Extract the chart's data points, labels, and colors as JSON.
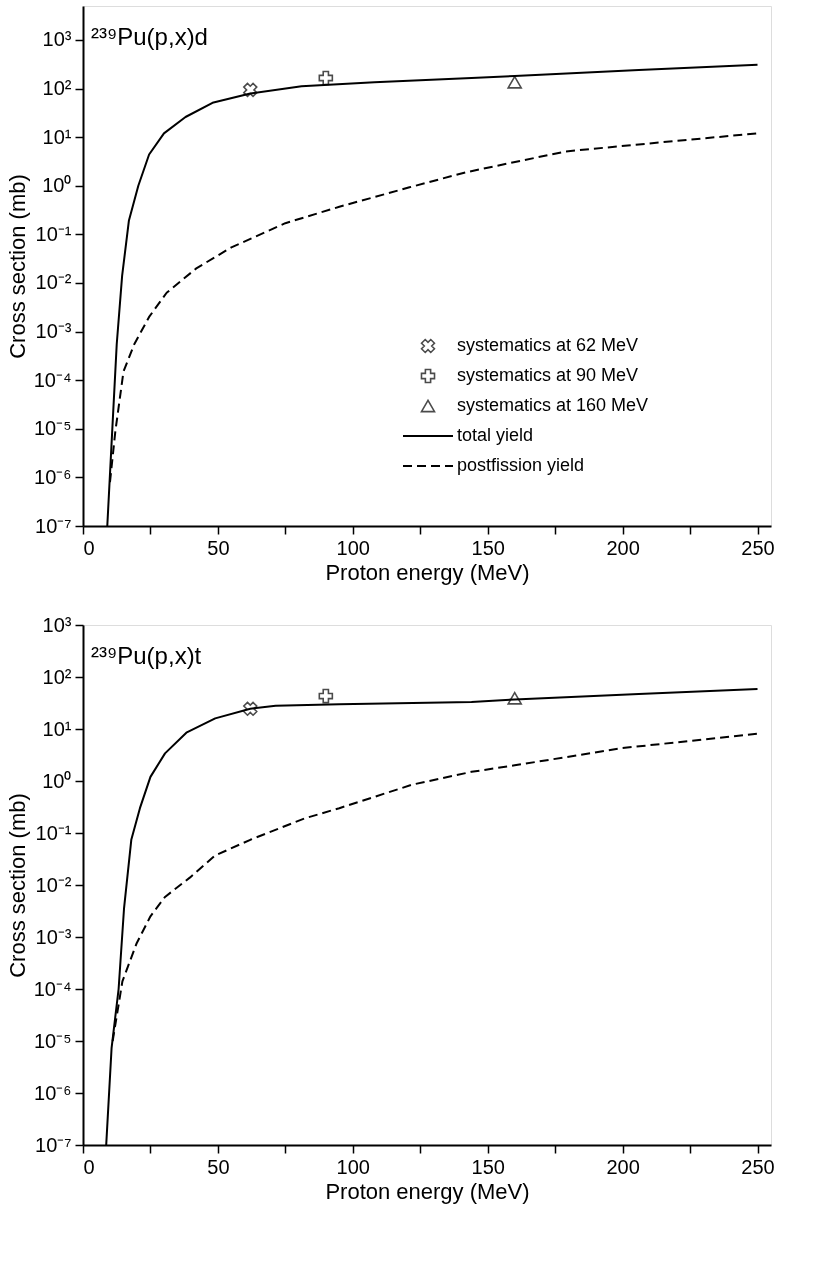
{
  "chart_data": [
    {
      "type": "line",
      "title": "²³⁹Pu(p,x)d",
      "xlabel": "Proton energy (MeV)",
      "ylabel": "Cross section (mb)",
      "log": "y",
      "grid": false,
      "legend": "bottom right",
      "xlim": [
        0,
        255
      ],
      "ylim": [
        1e-07,
        5000
      ],
      "xticks": [
        0,
        {
          "value": 25,
          "label": null
        },
        50,
        {
          "value": 75,
          "label": null
        },
        100,
        {
          "value": 125,
          "label": null
        },
        150,
        {
          "value": 175,
          "label": null
        },
        200,
        {
          "value": 225,
          "label": null
        },
        250
      ],
      "yticks": [
        {
          "value": 1e-07,
          "label": "10⁻⁷"
        },
        {
          "value": 1e-06,
          "label": "10⁻⁶"
        },
        {
          "value": 1e-05,
          "label": "10⁻⁵"
        },
        {
          "value": 0.0001,
          "label": "10⁻⁴"
        },
        {
          "value": 0.001,
          "label": "10⁻³"
        },
        {
          "value": 0.01,
          "label": "10⁻²"
        },
        {
          "value": 0.1,
          "label": "10⁻¹"
        },
        {
          "value": 1,
          "label": "10⁰"
        },
        {
          "value": 10,
          "label": "10¹"
        },
        {
          "value": 100,
          "label": "10²"
        },
        {
          "value": 1000,
          "label": "10³"
        }
      ],
      "series": [
        {
          "name": "systematics at 62 MeV",
          "type": "scatter",
          "marker": "x",
          "color": "#000000",
          "x": [
            62
          ],
          "values": [
            94
          ]
        },
        {
          "name": "systematics at 90 MeV",
          "type": "scatter",
          "marker": "cross",
          "color": "#000000",
          "x": [
            90
          ],
          "values": [
            165
          ]
        },
        {
          "name": "systematics at 160 MeV",
          "type": "scatter",
          "marker": "triangle",
          "color": "#000000",
          "x": [
            160
          ],
          "values": [
            135
          ]
        },
        {
          "name": "total yield",
          "line_style": "solid",
          "color": "#000000",
          "x": [
            9,
            10.5,
            12.5,
            14.5,
            17,
            20.5,
            24.5,
            30,
            38,
            48,
            62,
            81,
            108,
            144,
            160,
            206,
            250
          ],
          "values": [
            1e-07,
            4e-06,
            0.00055,
            0.014,
            0.19,
            1.0,
            4.4,
            12,
            26,
            51,
            79,
            112,
            135,
            166,
            182,
            240,
            309
          ]
        },
        {
          "name": "postfission yield",
          "line_style": "dashed",
          "color": "#000000",
          "x": [
            10,
            12,
            15,
            19,
            24.5,
            31,
            42,
            55,
            75,
            95,
            121,
            142,
            179,
            219,
            250
          ],
          "values": [
            8e-07,
            9e-06,
            0.00015,
            0.00055,
            0.002,
            0.0063,
            0.02,
            0.054,
            0.17,
            0.37,
            0.93,
            1.9,
            5.1,
            8.3,
            12
          ]
        }
      ]
    },
    {
      "type": "line",
      "title": "²³⁹Pu(p,x)t",
      "xlabel": "Proton energy (MeV)",
      "ylabel": "Cross section (mb)",
      "log": "y",
      "grid": false,
      "xlim": [
        0,
        255
      ],
      "ylim": [
        1e-07,
        1000
      ],
      "xticks": [
        0,
        {
          "value": 25,
          "label": null
        },
        50,
        {
          "value": 75,
          "label": null
        },
        100,
        {
          "value": 125,
          "label": null
        },
        150,
        {
          "value": 175,
          "label": null
        },
        200,
        {
          "value": 225,
          "label": null
        },
        250
      ],
      "yticks": [
        {
          "value": 1e-07,
          "label": "10⁻⁷"
        },
        {
          "value": 1e-06,
          "label": "10⁻⁶"
        },
        {
          "value": 1e-05,
          "label": "10⁻⁵"
        },
        {
          "value": 0.0001,
          "label": "10⁻⁴"
        },
        {
          "value": 0.001,
          "label": "10⁻³"
        },
        {
          "value": 0.01,
          "label": "10⁻²"
        },
        {
          "value": 0.1,
          "label": "10⁻¹"
        },
        {
          "value": 1,
          "label": "10⁰"
        },
        {
          "value": 10,
          "label": "10¹"
        },
        {
          "value": 100,
          "label": "10²"
        },
        {
          "value": 1000,
          "label": "10³"
        }
      ],
      "series": [
        {
          "type": "scatter",
          "marker": "x",
          "color": "#000000",
          "x": [
            62
          ],
          "values": [
            24.5
          ]
        },
        {
          "type": "scatter",
          "marker": "cross",
          "color": "#000000",
          "x": [
            90
          ],
          "values": [
            43
          ]
        },
        {
          "type": "scatter",
          "marker": "triangle",
          "color": "#000000",
          "x": [
            160
          ],
          "values": [
            39
          ]
        },
        {
          "line_style": "solid",
          "color": "#000000",
          "x": [
            8.6,
            10.6,
            13.2,
            15.2,
            17.9,
            21.1,
            25,
            30.4,
            38.3,
            49,
            62,
            71.4,
            95,
            144,
            160,
            206,
            250
          ],
          "values": [
            1e-07,
            7.4e-06,
            0.0001,
            0.0035,
            0.074,
            0.3,
            1.2,
            3.4,
            8.5,
            16,
            24.5,
            28,
            30,
            33,
            37,
            47,
            59
          ]
        },
        {
          "line_style": "dashed",
          "color": "#000000",
          "x": [
            11,
            14.6,
            19.8,
            25,
            30.4,
            39.7,
            49,
            62,
            82,
            95,
            122,
            144,
            160,
            200,
            250
          ],
          "values": [
            1e-05,
            0.00014,
            0.00074,
            0.0025,
            0.0059,
            0.014,
            0.037,
            0.074,
            0.19,
            0.3,
            0.85,
            1.5,
            2.0,
            4.3,
            8.1
          ]
        }
      ]
    }
  ]
}
